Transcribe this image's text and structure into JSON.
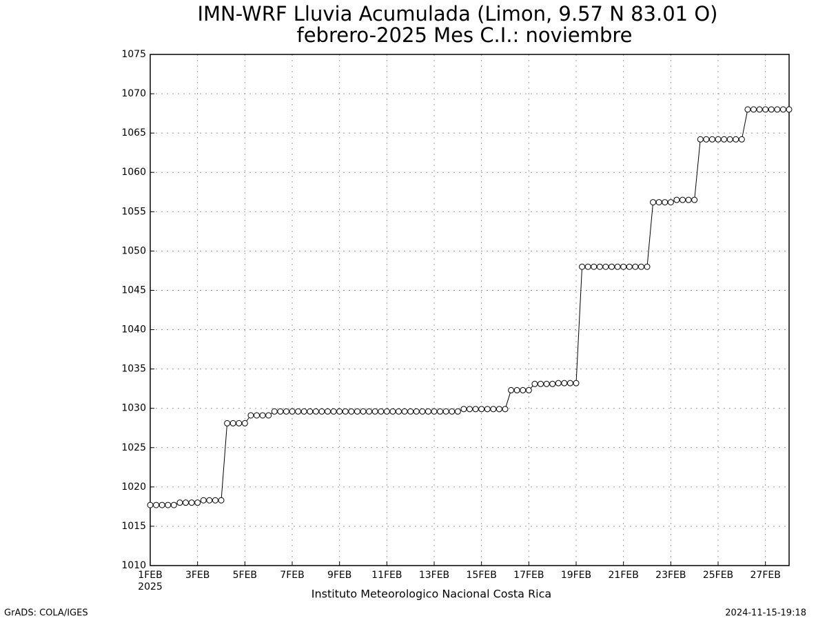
{
  "chart_data": {
    "type": "line",
    "title": "IMN-WRF  Lluvia Acumulada  (Limon, 9.57  N 83.01  O)",
    "subtitle": "febrero-2025 Mes C.I.: noviembre",
    "x_label_year": "2025",
    "footer": "Instituto Meteorologico Nacional Costa Rica",
    "credit": "GrADS: COLA/IGES",
    "timestamp": "2024-11-15-19:18",
    "x": [
      0,
      0.25,
      0.5,
      0.75,
      1,
      1.25,
      1.5,
      1.75,
      2,
      2.25,
      2.5,
      2.75,
      3,
      3.25,
      3.5,
      3.75,
      4,
      4.25,
      4.5,
      4.75,
      5,
      5.25,
      5.5,
      5.75,
      6,
      6.25,
      6.5,
      6.75,
      7,
      7.25,
      7.5,
      7.75,
      8,
      8.25,
      8.5,
      8.75,
      9,
      9.25,
      9.5,
      9.75,
      10,
      10.25,
      10.5,
      10.75,
      11,
      11.25,
      11.5,
      11.75,
      12,
      12.25,
      12.5,
      12.75,
      13,
      13.25,
      13.5,
      13.75,
      14,
      14.25,
      14.5,
      14.75,
      15,
      15.25,
      15.5,
      15.75,
      16,
      16.25,
      16.5,
      16.75,
      17,
      17.25,
      17.5,
      17.75,
      18,
      18.25,
      18.5,
      18.75,
      19,
      19.25,
      19.5,
      19.75,
      20,
      20.25,
      20.5,
      20.75,
      21,
      21.25,
      21.5,
      21.75,
      22,
      22.25,
      22.5,
      22.75,
      23,
      23.25,
      23.5,
      23.75,
      24,
      24.25,
      24.5,
      24.75,
      25,
      25.25,
      25.5,
      25.75,
      26,
      26.25,
      26.5,
      26.75,
      27
    ],
    "series": [
      {
        "color": "#000000",
        "values": [
          1017.7,
          1017.7,
          1017.7,
          1017.7,
          1017.7,
          1018.0,
          1018.0,
          1018.0,
          1018.0,
          1018.3,
          1018.3,
          1018.3,
          1018.3,
          1028.1,
          1028.1,
          1028.1,
          1028.1,
          1029.1,
          1029.1,
          1029.1,
          1029.1,
          1029.6,
          1029.6,
          1029.6,
          1029.6,
          1029.6,
          1029.6,
          1029.6,
          1029.6,
          1029.6,
          1029.6,
          1029.6,
          1029.6,
          1029.6,
          1029.6,
          1029.6,
          1029.6,
          1029.6,
          1029.6,
          1029.6,
          1029.6,
          1029.6,
          1029.6,
          1029.6,
          1029.6,
          1029.6,
          1029.6,
          1029.6,
          1029.6,
          1029.6,
          1029.6,
          1029.6,
          1029.6,
          1029.9,
          1029.9,
          1029.9,
          1029.9,
          1029.9,
          1029.9,
          1029.9,
          1029.9,
          1032.3,
          1032.3,
          1032.3,
          1032.3,
          1033.1,
          1033.1,
          1033.1,
          1033.1,
          1033.2,
          1033.2,
          1033.2,
          1033.2,
          1048.0,
          1048.0,
          1048.0,
          1048.0,
          1048.0,
          1048.0,
          1048.0,
          1048.0,
          1048.0,
          1048.0,
          1048.0,
          1048.0,
          1056.2,
          1056.2,
          1056.2,
          1056.2,
          1056.5,
          1056.5,
          1056.5,
          1056.5,
          1064.2,
          1064.2,
          1064.2,
          1064.2,
          1064.2,
          1064.2,
          1064.2,
          1064.2,
          1068.0,
          1068.0,
          1068.0,
          1068.0,
          1068.0,
          1068.0,
          1068.0,
          1068.0
        ]
      }
    ],
    "xlim": [
      0,
      27
    ],
    "xticks": [
      {
        "value": 0,
        "label": "1FEB"
      },
      {
        "value": 2,
        "label": "3FEB"
      },
      {
        "value": 4,
        "label": "5FEB"
      },
      {
        "value": 6,
        "label": "7FEB"
      },
      {
        "value": 8,
        "label": "9FEB"
      },
      {
        "value": 10,
        "label": "11FEB"
      },
      {
        "value": 12,
        "label": "13FEB"
      },
      {
        "value": 14,
        "label": "15FEB"
      },
      {
        "value": 16,
        "label": "17FEB"
      },
      {
        "value": 18,
        "label": "19FEB"
      },
      {
        "value": 20,
        "label": "21FEB"
      },
      {
        "value": 22,
        "label": "23FEB"
      },
      {
        "value": 24,
        "label": "25FEB"
      },
      {
        "value": 26,
        "label": "27FEB"
      }
    ],
    "ylim": [
      1010,
      1075
    ],
    "yticks": [
      1010,
      1015,
      1020,
      1025,
      1030,
      1035,
      1040,
      1045,
      1050,
      1055,
      1060,
      1065,
      1070,
      1075
    ],
    "grid": true
  }
}
